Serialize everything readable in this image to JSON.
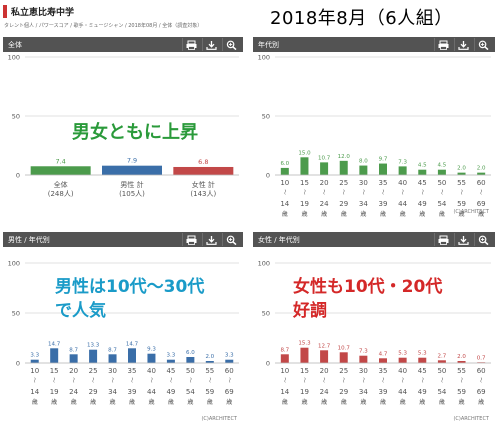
{
  "header": {
    "title": "私立恵比寿中学",
    "breadcrumb": "タレント個人 / パワースコア / 歌手・ミュージシャン / 2018年08月 / 全体（調査対象）",
    "big_title": "2018年8月（6人組）"
  },
  "icons": [
    "print-icon",
    "download-icon",
    "zoom-icon"
  ],
  "colors": {
    "green": "#4c9b4c",
    "blue": "#3a6ea8",
    "red": "#c24848",
    "header_bar": "#535353",
    "annotation_green": "#2a9a3a",
    "annotation_blue": "#1a9bc8",
    "annotation_red": "#d42828"
  },
  "panels": [
    {
      "title": "全体",
      "annotation": [
        "男女ともに上昇"
      ],
      "annotation_color": "#2a9a3a"
    },
    {
      "title": "年代別",
      "annotation": [],
      "annotation_color": ""
    },
    {
      "title": "男性 / 年代別",
      "annotation": [
        "男性は10代～30代",
        "で人気"
      ],
      "annotation_color": "#1a9bc8"
    },
    {
      "title": "女性 / 年代別",
      "annotation": [
        "女性も10代・20代",
        "好調"
      ],
      "annotation_color": "#d42828"
    }
  ],
  "chart_data": [
    {
      "type": "bar",
      "title": "全体",
      "categories": [
        [
          "全体",
          "(248人)"
        ],
        [
          "男性 計",
          "(105人)"
        ],
        [
          "女性 計",
          "(143人)"
        ]
      ],
      "values": [
        7.4,
        7.9,
        6.8
      ],
      "colors": [
        "#4c9b4c",
        "#3a6ea8",
        "#c24848"
      ],
      "y_ticks": [
        0,
        50,
        100
      ],
      "ylim": [
        0,
        100
      ]
    },
    {
      "type": "bar",
      "title": "年代別",
      "categories": [
        [
          "10",
          "～",
          "14",
          "歳"
        ],
        [
          "15",
          "～",
          "19",
          "歳"
        ],
        [
          "20",
          "～",
          "24",
          "歳"
        ],
        [
          "25",
          "～",
          "29",
          "歳"
        ],
        [
          "30",
          "～",
          "34",
          "歳"
        ],
        [
          "35",
          "～",
          "39",
          "歳"
        ],
        [
          "40",
          "～",
          "44",
          "歳"
        ],
        [
          "45",
          "～",
          "49",
          "歳"
        ],
        [
          "50",
          "～",
          "54",
          "歳"
        ],
        [
          "55",
          "～",
          "59",
          "歳"
        ],
        [
          "60",
          "～",
          "69",
          "歳"
        ]
      ],
      "values": [
        6.0,
        15.0,
        10.7,
        12.0,
        8.0,
        9.7,
        7.3,
        4.5,
        4.5,
        2.0,
        2.0
      ],
      "color": "#4c9b4c",
      "y_ticks": [
        0,
        50,
        100
      ],
      "ylim": [
        0,
        100
      ],
      "credit": "(C)ARCHITECT"
    },
    {
      "type": "bar",
      "title": "男性 / 年代別",
      "categories": [
        [
          "10",
          "～",
          "14",
          "歳"
        ],
        [
          "15",
          "～",
          "19",
          "歳"
        ],
        [
          "20",
          "～",
          "24",
          "歳"
        ],
        [
          "25",
          "～",
          "29",
          "歳"
        ],
        [
          "30",
          "～",
          "34",
          "歳"
        ],
        [
          "35",
          "～",
          "39",
          "歳"
        ],
        [
          "40",
          "～",
          "44",
          "歳"
        ],
        [
          "45",
          "～",
          "49",
          "歳"
        ],
        [
          "50",
          "～",
          "54",
          "歳"
        ],
        [
          "55",
          "～",
          "59",
          "歳"
        ],
        [
          "60",
          "～",
          "69",
          "歳"
        ]
      ],
      "values": [
        3.3,
        14.7,
        8.7,
        13.3,
        8.7,
        14.7,
        9.3,
        3.3,
        6.0,
        2.0,
        3.3
      ],
      "color": "#3a6ea8",
      "y_ticks": [
        0,
        50,
        100
      ],
      "ylim": [
        0,
        100
      ],
      "credit": "(C)ARCHITECT"
    },
    {
      "type": "bar",
      "title": "女性 / 年代別",
      "categories": [
        [
          "10",
          "～",
          "14",
          "歳"
        ],
        [
          "15",
          "～",
          "19",
          "歳"
        ],
        [
          "20",
          "～",
          "24",
          "歳"
        ],
        [
          "25",
          "～",
          "29",
          "歳"
        ],
        [
          "30",
          "～",
          "34",
          "歳"
        ],
        [
          "35",
          "～",
          "39",
          "歳"
        ],
        [
          "40",
          "～",
          "44",
          "歳"
        ],
        [
          "45",
          "～",
          "49",
          "歳"
        ],
        [
          "50",
          "～",
          "54",
          "歳"
        ],
        [
          "55",
          "～",
          "59",
          "歳"
        ],
        [
          "60",
          "～",
          "69",
          "歳"
        ]
      ],
      "values": [
        8.7,
        15.3,
        12.7,
        10.7,
        7.3,
        4.7,
        5.3,
        5.3,
        2.7,
        2.0,
        0.7
      ],
      "color": "#c24848",
      "y_ticks": [
        0,
        50,
        100
      ],
      "ylim": [
        0,
        100
      ],
      "credit": "(C)ARCHITECT"
    }
  ]
}
